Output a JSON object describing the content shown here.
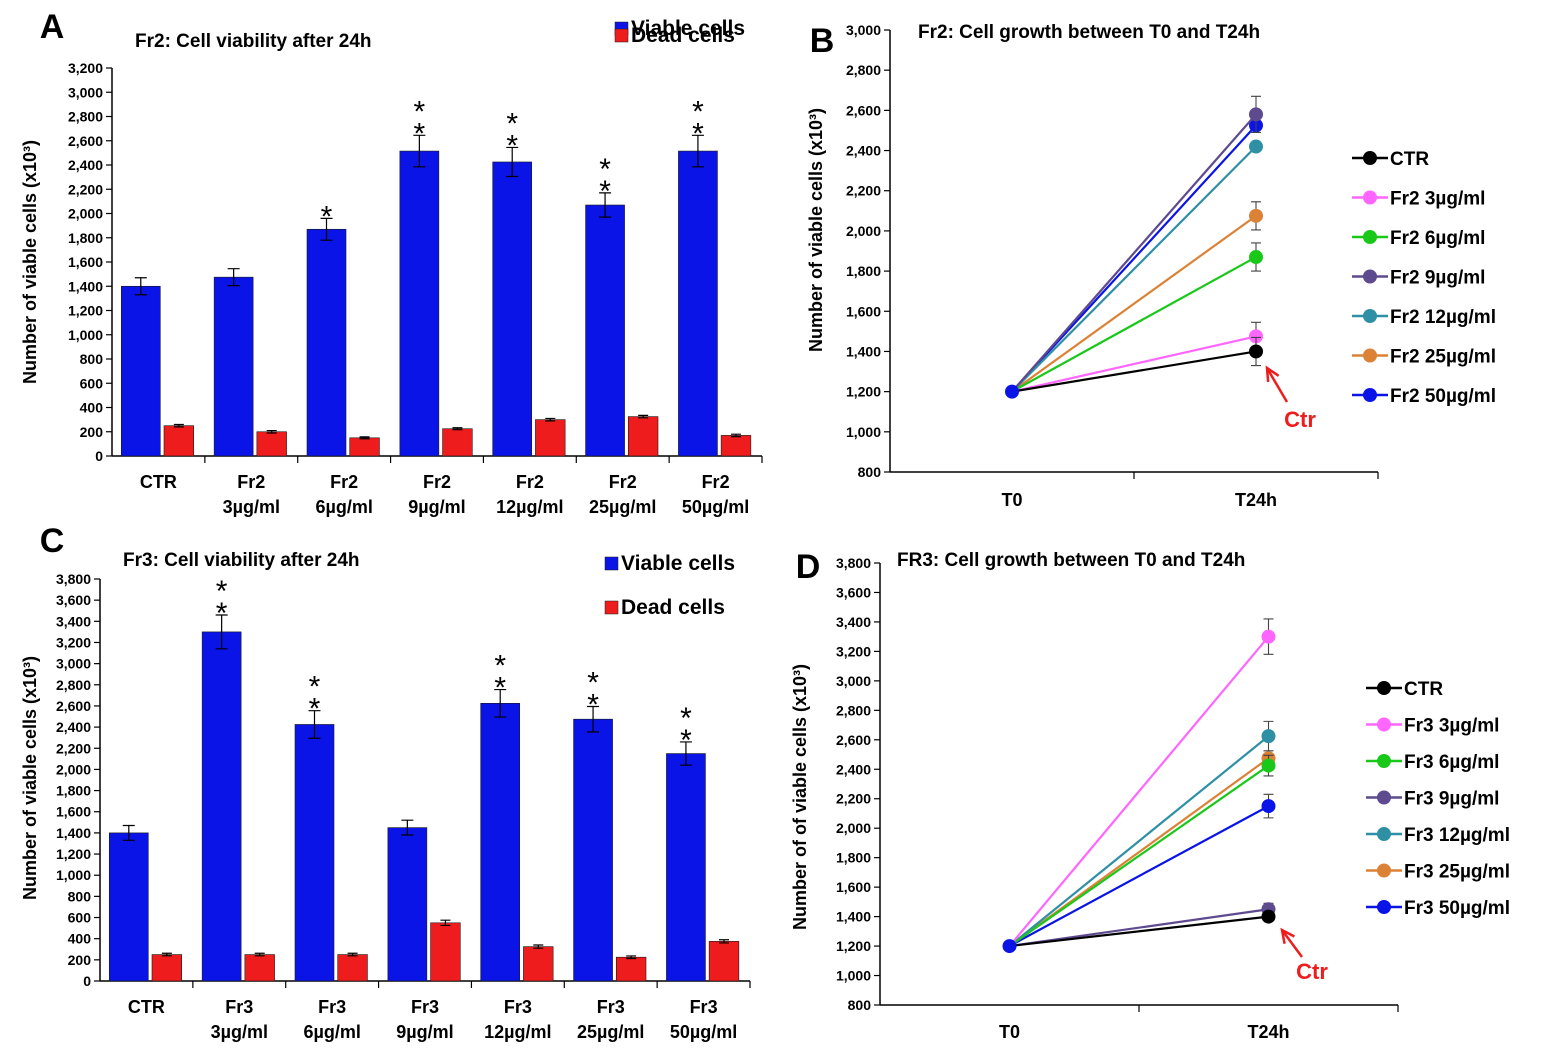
{
  "colors": {
    "viable": "#0a14e6",
    "dead": "#ee1c1c",
    "series": [
      "#000000",
      "#ff66ff",
      "#19c819",
      "#5e4a8e",
      "#2e8fa5",
      "#dc8236",
      "#0a14e6"
    ],
    "arrow": "#ee1c1c"
  },
  "chart_data": [
    {
      "panel": "A",
      "type": "bar",
      "title": "Fr2: Cell viability after 24h",
      "ylabel": "Number of viable cells (x10³)",
      "ylim": [
        0,
        3200
      ],
      "ystep": 200,
      "categories": [
        [
          "CTR"
        ],
        [
          "Fr2",
          "3µg/ml"
        ],
        [
          "Fr2",
          "6µg/ml"
        ],
        [
          "Fr2",
          "9µg/ml"
        ],
        [
          "Fr2",
          "12µg/ml"
        ],
        [
          "Fr2",
          "25µg/ml"
        ],
        [
          "Fr2",
          "50µg/ml"
        ]
      ],
      "series": [
        {
          "name": "Viable cells",
          "values": [
            1400,
            1475,
            1870,
            2515,
            2425,
            2070,
            2515
          ],
          "errors": [
            70,
            70,
            90,
            130,
            120,
            100,
            130
          ]
        },
        {
          "name": "Dead cells",
          "values": [
            250,
            200,
            150,
            225,
            300,
            325,
            170
          ],
          "errors": [
            10,
            10,
            8,
            8,
            10,
            10,
            10
          ]
        }
      ],
      "significance": [
        "",
        "",
        "*",
        "**",
        "**",
        "**",
        "**"
      ],
      "legend": "top-right"
    },
    {
      "panel": "B",
      "type": "line",
      "title": "Fr2: Cell growth between T0 and T24h",
      "ylabel": "Number of viable cells (x10³)",
      "ylim": [
        800,
        3000
      ],
      "ystep": 200,
      "x": [
        "T0",
        "T24h"
      ],
      "series": [
        {
          "name": "CTR",
          "values": [
            1200,
            1400
          ],
          "error": 70
        },
        {
          "name": "Fr2 3µg/ml",
          "values": [
            1200,
            1475
          ],
          "error": 70
        },
        {
          "name": "Fr2 6µg/ml",
          "values": [
            1200,
            1870
          ],
          "error": 70
        },
        {
          "name": "Fr2 9µg/ml",
          "values": [
            1200,
            2580
          ],
          "error": 90
        },
        {
          "name": "Fr2 12µg/ml",
          "values": [
            1200,
            2420
          ],
          "error": 0
        },
        {
          "name": "Fr2 25µg/ml",
          "values": [
            1200,
            2075
          ],
          "error": 70
        },
        {
          "name": "Fr2 50µg/ml",
          "values": [
            1200,
            2525
          ],
          "error": 0
        }
      ],
      "annotation": "Ctr",
      "legend": "right"
    },
    {
      "panel": "C",
      "type": "bar",
      "title": "Fr3: Cell viability after 24h",
      "ylabel": "Number of viable cells (x10³)",
      "ylim": [
        0,
        3800
      ],
      "ystep": 200,
      "categories": [
        [
          "CTR"
        ],
        [
          "Fr3",
          "3µg/ml"
        ],
        [
          "Fr3",
          "6µg/ml"
        ],
        [
          "Fr3",
          "9µg/ml"
        ],
        [
          "Fr3",
          "12µg/ml"
        ],
        [
          "Fr3",
          "25µg/ml"
        ],
        [
          "Fr3",
          "50µg/ml"
        ]
      ],
      "series": [
        {
          "name": "Viable cells",
          "values": [
            1400,
            3300,
            2425,
            1450,
            2625,
            2475,
            2150
          ],
          "errors": [
            70,
            160,
            130,
            70,
            130,
            120,
            110
          ]
        },
        {
          "name": "Dead cells",
          "values": [
            250,
            250,
            250,
            550,
            325,
            225,
            375
          ],
          "errors": [
            12,
            12,
            12,
            25,
            15,
            12,
            15
          ]
        }
      ],
      "significance": [
        "",
        "**",
        "**",
        "",
        "**",
        "**",
        "**"
      ],
      "legend": "top-right"
    },
    {
      "panel": "D",
      "type": "line",
      "title": "FR3: Cell growth between T0 and T24h",
      "ylabel": "Number of  of viable cells (x10³)",
      "ylim": [
        800,
        3800
      ],
      "ystep": 200,
      "x": [
        "T0",
        "T24h"
      ],
      "series": [
        {
          "name": "CTR",
          "values": [
            1200,
            1400
          ],
          "error": 0
        },
        {
          "name": "Fr3 3µg/ml",
          "values": [
            1200,
            3300
          ],
          "error": 120
        },
        {
          "name": "Fr3 6µg/ml",
          "values": [
            1200,
            2425
          ],
          "error": 70
        },
        {
          "name": "Fr3 9µg/ml",
          "values": [
            1200,
            1450
          ],
          "error": 40
        },
        {
          "name": "Fr3 12µg/ml",
          "values": [
            1200,
            2625
          ],
          "error": 100
        },
        {
          "name": "Fr3 25µg/ml",
          "values": [
            1200,
            2475
          ],
          "error": 0
        },
        {
          "name": "Fr3 50µg/ml",
          "values": [
            1200,
            2150
          ],
          "error": 80
        }
      ],
      "annotation": "Ctr",
      "legend": "right"
    }
  ]
}
